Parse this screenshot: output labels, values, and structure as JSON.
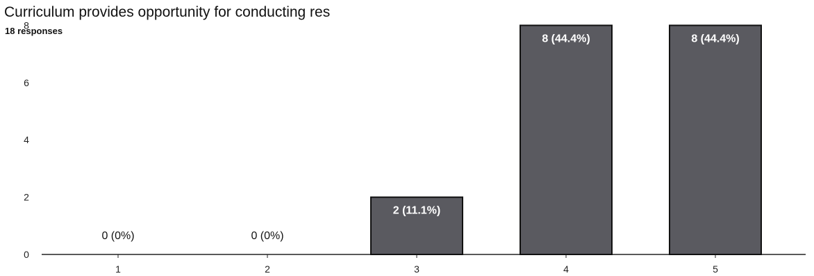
{
  "chart_data": {
    "type": "bar",
    "title": "Curriculum provides opportunity for conducting res",
    "subtitle": "18 responses",
    "categories": [
      "1",
      "2",
      "3",
      "4",
      "5"
    ],
    "values": [
      0,
      0,
      2,
      8,
      8
    ],
    "labels": [
      "0 (0%)",
      "0 (0%)",
      "2 (11.1%)",
      "8 (44.4%)",
      "8 (44.4%)"
    ],
    "yticks": [
      0,
      2,
      4,
      6,
      8
    ],
    "ylim": [
      0,
      8.4
    ],
    "grid": false,
    "colors": {
      "bar": "#5a5a60",
      "bar_outline": "#111111",
      "axis": "#222222",
      "label_on_bar": "#ffffff",
      "label_off_bar": "#111111"
    }
  }
}
